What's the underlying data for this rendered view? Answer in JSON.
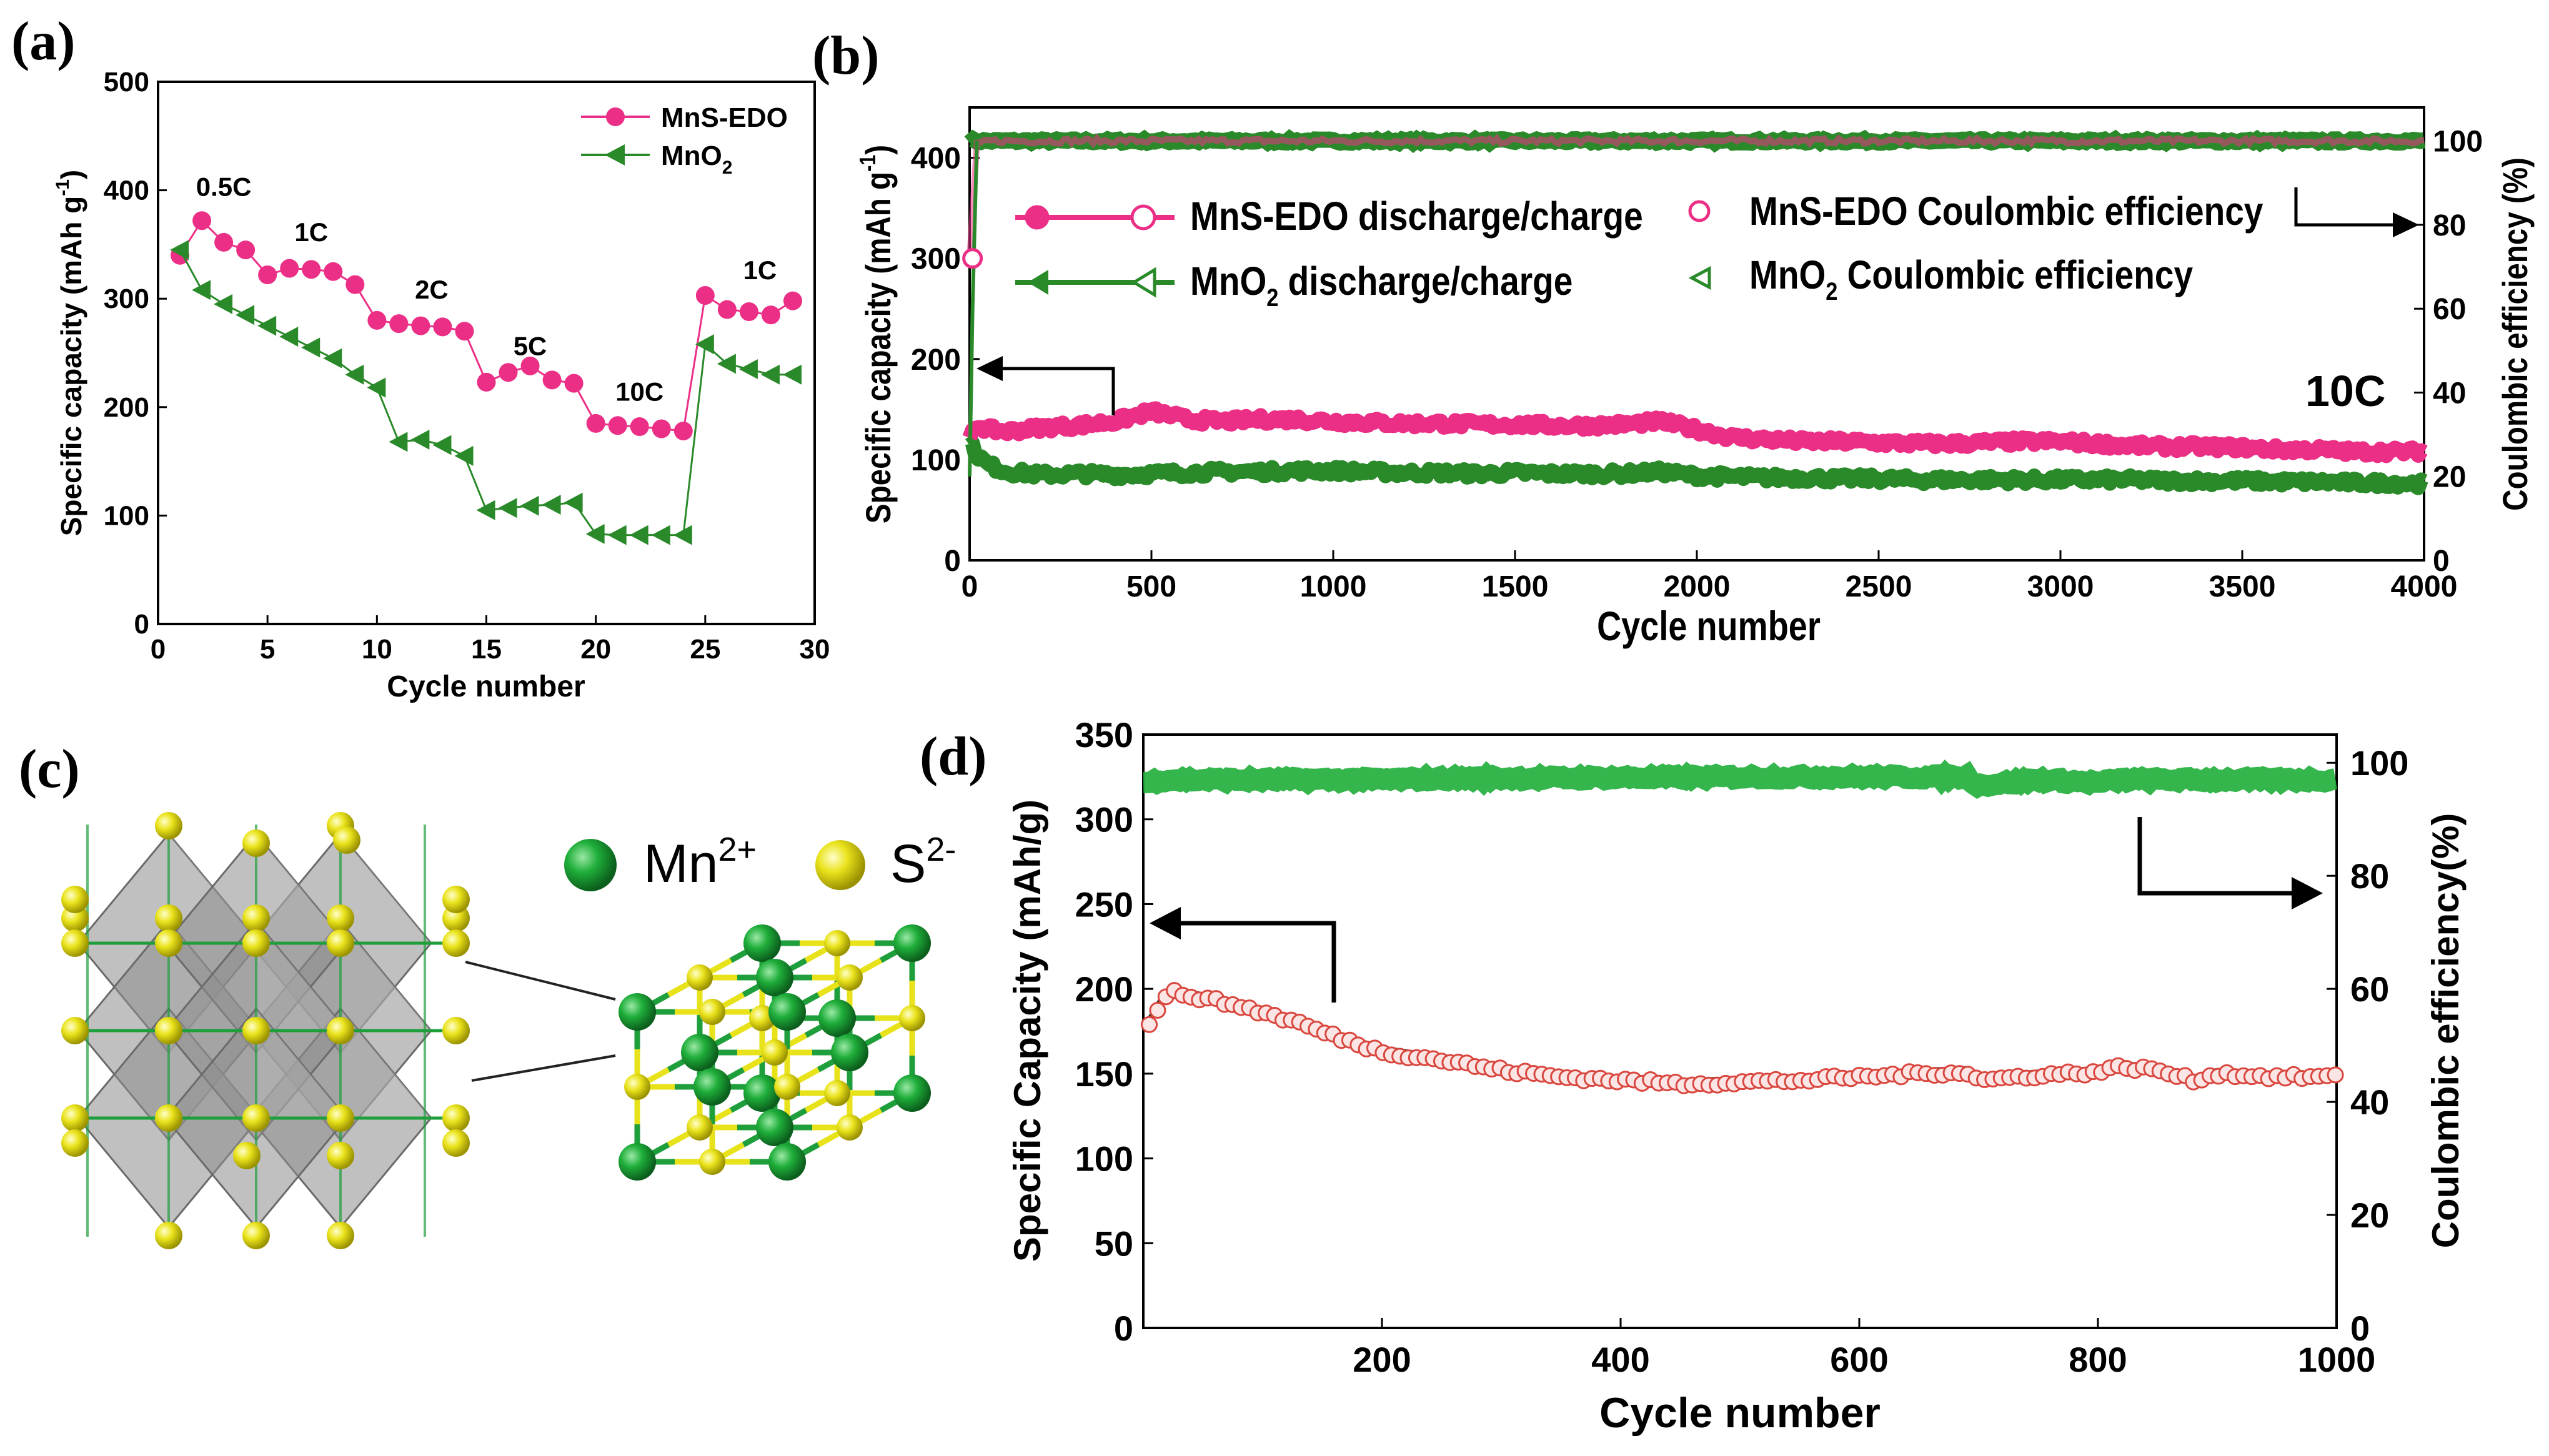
{
  "panels": {
    "a": {
      "label": "(a)"
    },
    "b": {
      "label": "(b)"
    },
    "c": {
      "label": "(c)"
    },
    "d": {
      "label": "(d)"
    }
  },
  "colors": {
    "pink": "#ec2f86",
    "pink_light": "#f7a8cc",
    "green": "#2a8a2a",
    "green_bright": "#1fae3a",
    "mn_atom": "#1f9e3c",
    "s_atom": "#e7e21a",
    "octahedron": "#8d8d8d",
    "red_marker": "#d9473f"
  },
  "structure": {
    "legend_mn": "Mn",
    "legend_mn_sup": "2+",
    "legend_s": "S",
    "legend_s_sup": "2-"
  },
  "chart_data": [
    {
      "id": "a",
      "type": "line",
      "xlabel": "Cycle number",
      "ylabel": "Specific capacity (mAh g",
      "ylabel_sup": "-1",
      "ylabel_end": ")",
      "xlim": [
        0,
        30
      ],
      "ylim": [
        0,
        500
      ],
      "xticks": [
        0,
        5,
        10,
        15,
        20,
        25,
        30
      ],
      "yticks": [
        0,
        100,
        200,
        300,
        400,
        500
      ],
      "legend": [
        {
          "name": "MnS-EDO",
          "sub": ""
        },
        {
          "name": "MnO",
          "sub": "2"
        }
      ],
      "annotations": [
        {
          "text": "0.5C",
          "x": 3,
          "y": 395
        },
        {
          "text": "1C",
          "x": 7,
          "y": 353
        },
        {
          "text": "2C",
          "x": 12.5,
          "y": 300
        },
        {
          "text": "5C",
          "x": 17,
          "y": 248
        },
        {
          "text": "10C",
          "x": 22,
          "y": 206
        },
        {
          "text": "1C",
          "x": 27.5,
          "y": 318
        }
      ],
      "x": [
        1,
        2,
        3,
        4,
        5,
        6,
        7,
        8,
        9,
        10,
        11,
        12,
        13,
        14,
        15,
        16,
        17,
        18,
        19,
        20,
        21,
        22,
        23,
        24,
        25,
        26,
        27,
        28,
        29
      ],
      "series": [
        {
          "name": "MnS-EDO",
          "values": [
            340,
            372,
            352,
            345,
            322,
            328,
            327,
            325,
            313,
            280,
            277,
            275,
            274,
            270,
            223,
            232,
            238,
            225,
            222,
            185,
            183,
            182,
            180,
            178,
            303,
            290,
            288,
            285,
            298
          ]
        },
        {
          "name": "MnO2",
          "values": [
            345,
            308,
            295,
            285,
            275,
            265,
            255,
            245,
            230,
            218,
            168,
            170,
            165,
            155,
            105,
            107,
            109,
            110,
            112,
            83,
            82,
            82,
            82,
            82,
            258,
            240,
            235,
            230,
            230
          ]
        }
      ]
    },
    {
      "id": "b",
      "type": "line",
      "xlabel": "Cycle number",
      "ylabel": "Specific capacity (mAh g",
      "ylabel_sup": "-1",
      "ylabel_end": ")",
      "y2label": "Coulombic efficiency (%)",
      "xlim": [
        0,
        4000
      ],
      "ylim": [
        0,
        450
      ],
      "y2lim": [
        0,
        108
      ],
      "xticks": [
        0,
        500,
        1000,
        1500,
        2000,
        2500,
        3000,
        3500,
        4000
      ],
      "yticks": [
        0,
        100,
        200,
        300,
        400
      ],
      "y2ticks": [
        0,
        20,
        40,
        60,
        80,
        100
      ],
      "legend": [
        {
          "name": "MnS-EDO discharge/charge",
          "sub": "",
          "pre": "MnS-EDO discharge/charge"
        },
        {
          "name": "MnO2 discharge/charge",
          "pre": "MnO",
          "sub": "2",
          "post": " discharge/charge"
        },
        {
          "name": "MnS-EDO Coulombic efficiency",
          "pre": "MnS-EDO Coulombic efficiency",
          "sub": ""
        },
        {
          "name": "MnO2 Coulombic efficiency",
          "pre": "MnO",
          "sub": "2",
          "post": " Coulombic efficiency"
        }
      ],
      "rate_label": "10C",
      "x": [
        0,
        20,
        50,
        100,
        200,
        300,
        400,
        500,
        600,
        700,
        800,
        900,
        1000,
        1100,
        1200,
        1300,
        1400,
        1500,
        1600,
        1700,
        1800,
        1900,
        2000,
        2100,
        2200,
        2300,
        2400,
        2500,
        2600,
        2700,
        2800,
        2900,
        3000,
        3100,
        3200,
        3300,
        3400,
        3500,
        3600,
        3700,
        3800,
        3900,
        4000
      ],
      "series": [
        {
          "name": "MnS-EDO capacity",
          "values": [
            120,
            135,
            130,
            128,
            132,
            134,
            138,
            148,
            140,
            138,
            140,
            140,
            138,
            137,
            136,
            136,
            135,
            135,
            134,
            134,
            135,
            138,
            130,
            122,
            120,
            118,
            118,
            117,
            116,
            116,
            117,
            118,
            118,
            116,
            114,
            113,
            113,
            112,
            110,
            110,
            108,
            108,
            108
          ]
        },
        {
          "name": "MnO2 capacity",
          "values": [
            118,
            105,
            95,
            88,
            85,
            86,
            85,
            86,
            87,
            88,
            88,
            89,
            89,
            88,
            87,
            87,
            86,
            87,
            86,
            86,
            86,
            88,
            84,
            83,
            82,
            82,
            81,
            81,
            80,
            80,
            80,
            80,
            80,
            80,
            80,
            79,
            79,
            79,
            78,
            78,
            77,
            77,
            76
          ]
        },
        {
          "name": "MnS-EDO Coulombic efficiency",
          "values": [
            72,
            99,
            100,
            100,
            100,
            100,
            100,
            100,
            100,
            100,
            100,
            100,
            100,
            100,
            100,
            100,
            100,
            100,
            100,
            100,
            100,
            100,
            100,
            100,
            100,
            100,
            100,
            100,
            100,
            100,
            100,
            100,
            100,
            100,
            100,
            100,
            100,
            100,
            100,
            100,
            100,
            100,
            100
          ]
        },
        {
          "name": "MnO2 Coulombic efficiency",
          "values": [
            100,
            100,
            100,
            100,
            100,
            100,
            100,
            100,
            100,
            100,
            100,
            100,
            100,
            100,
            100,
            100,
            100,
            100,
            100,
            100,
            100,
            100,
            100,
            100,
            100,
            100,
            100,
            100,
            100,
            100,
            100,
            100,
            100,
            100,
            100,
            100,
            100,
            100,
            100,
            100,
            100,
            100,
            100
          ]
        }
      ]
    },
    {
      "id": "d",
      "type": "scatter",
      "xlabel": "Cycle number",
      "ylabel": "Specific Capacity (mAh/g)",
      "y2label": "Coulombic efficiency(%)",
      "xlim": [
        0,
        1000
      ],
      "ylim": [
        0,
        350
      ],
      "y2lim": [
        0,
        105
      ],
      "xticks": [
        200,
        400,
        600,
        800,
        1000
      ],
      "yticks": [
        0,
        50,
        100,
        150,
        200,
        250,
        300,
        350
      ],
      "y2ticks": [
        0,
        20,
        40,
        60,
        80,
        100
      ],
      "x": [
        5,
        15,
        25,
        40,
        60,
        80,
        100,
        130,
        160,
        200,
        250,
        300,
        350,
        400,
        450,
        500,
        550,
        600,
        650,
        690,
        700,
        750,
        800,
        820,
        850,
        880,
        900,
        950,
        1000
      ],
      "series": [
        {
          "name": "Specific capacity",
          "values": [
            180,
            192,
            198,
            196,
            193,
            190,
            186,
            180,
            172,
            163,
            158,
            152,
            148,
            146,
            144,
            145,
            146,
            148,
            150,
            151,
            146,
            149,
            151,
            154,
            152,
            146,
            150,
            148,
            148
          ]
        },
        {
          "name": "Coulombic efficiency",
          "values": [
            96.5,
            97,
            97,
            97,
            97,
            97,
            97,
            97,
            97,
            97,
            97.2,
            97.3,
            97.3,
            97.4,
            97.4,
            97.5,
            97.5,
            97.5,
            97.5,
            97.5,
            96,
            97,
            96.5,
            97,
            97,
            97,
            97,
            97,
            97
          ]
        }
      ]
    }
  ]
}
